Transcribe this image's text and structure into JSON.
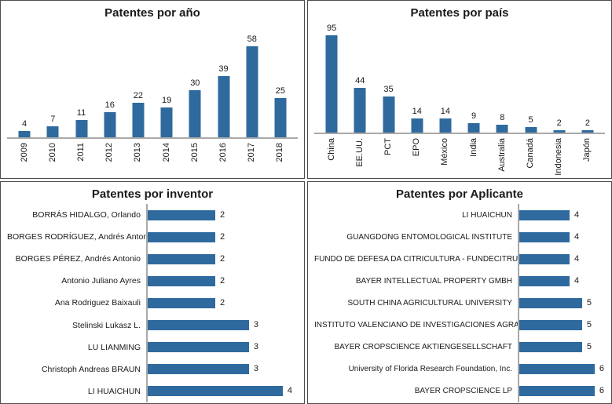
{
  "colors": {
    "bar": "#2F6A9E",
    "axis": "#A9A9A9",
    "panel_border": "#4D4D4D",
    "text": "#1A1A1A"
  },
  "chart_data": [
    {
      "type": "bar",
      "orientation": "vertical",
      "title": "Patentes por año",
      "categories": [
        "2009",
        "2010",
        "2011",
        "2012",
        "2013",
        "2014",
        "2015",
        "2016",
        "2017",
        "2018"
      ],
      "values": [
        4,
        7,
        11,
        16,
        22,
        19,
        30,
        39,
        58,
        25
      ],
      "ylim": [
        0,
        58
      ],
      "grid": false,
      "legend": "none",
      "value_labels": "above-bars",
      "tick_label_rotation": "90-ccw"
    },
    {
      "type": "bar",
      "orientation": "vertical",
      "title": "Patentes por país",
      "categories": [
        "China",
        "EE.UU.",
        "PCT",
        "EPO",
        "México",
        "India",
        "Australia",
        "Canadá",
        "Indonesia",
        "Japón"
      ],
      "values": [
        95,
        44,
        35,
        14,
        14,
        9,
        8,
        5,
        2,
        2
      ],
      "ylim": [
        0,
        95
      ],
      "grid": false,
      "legend": "none",
      "value_labels": "above-bars",
      "tick_label_rotation": "90-ccw"
    },
    {
      "type": "bar",
      "orientation": "horizontal",
      "title": "Patentes por inventor",
      "categories": [
        "BORRÁS HIDALGO, Orlando",
        "BORGES RODRÍGUEZ, Andrés Antonio",
        "BORGES PÉREZ, Andrés Antonio",
        "Antonio Juliano Ayres",
        "Ana Rodriguez Baixauli",
        "Stelinski Lukasz L.",
        "LU LIANMING",
        "Christoph Andreas BRAUN",
        "LI HUAICHUN"
      ],
      "values": [
        2,
        2,
        2,
        2,
        2,
        3,
        3,
        3,
        4
      ],
      "xlim": [
        0,
        4
      ],
      "grid": false,
      "legend": "none",
      "value_labels": "right-of-bars"
    },
    {
      "type": "bar",
      "orientation": "horizontal",
      "title": "Patentes por Aplicante",
      "categories": [
        "LI HUAICHUN",
        "GUANGDONG ENTOMOLOGICAL INSTITUTE",
        "FUNDO DE DEFESA DA CITRICULTURA - FUNDECITRUS",
        "BAYER INTELLECTUAL PROPERTY GMBH",
        "SOUTH CHINA AGRICULTURAL UNIVERSITY",
        "INSTITUTO VALENCIANO DE INVESTIGACIONES AGRARIAS",
        "BAYER CROPSCIENCE AKTIENGESELLSCHAFT",
        "University of Florida Research Foundation, Inc.",
        "BAYER CROPSCIENCE LP"
      ],
      "values": [
        4,
        4,
        4,
        4,
        5,
        5,
        5,
        6,
        6
      ],
      "xlim": [
        0,
        6
      ],
      "grid": false,
      "legend": "none",
      "value_labels": "right-of-bars"
    }
  ]
}
